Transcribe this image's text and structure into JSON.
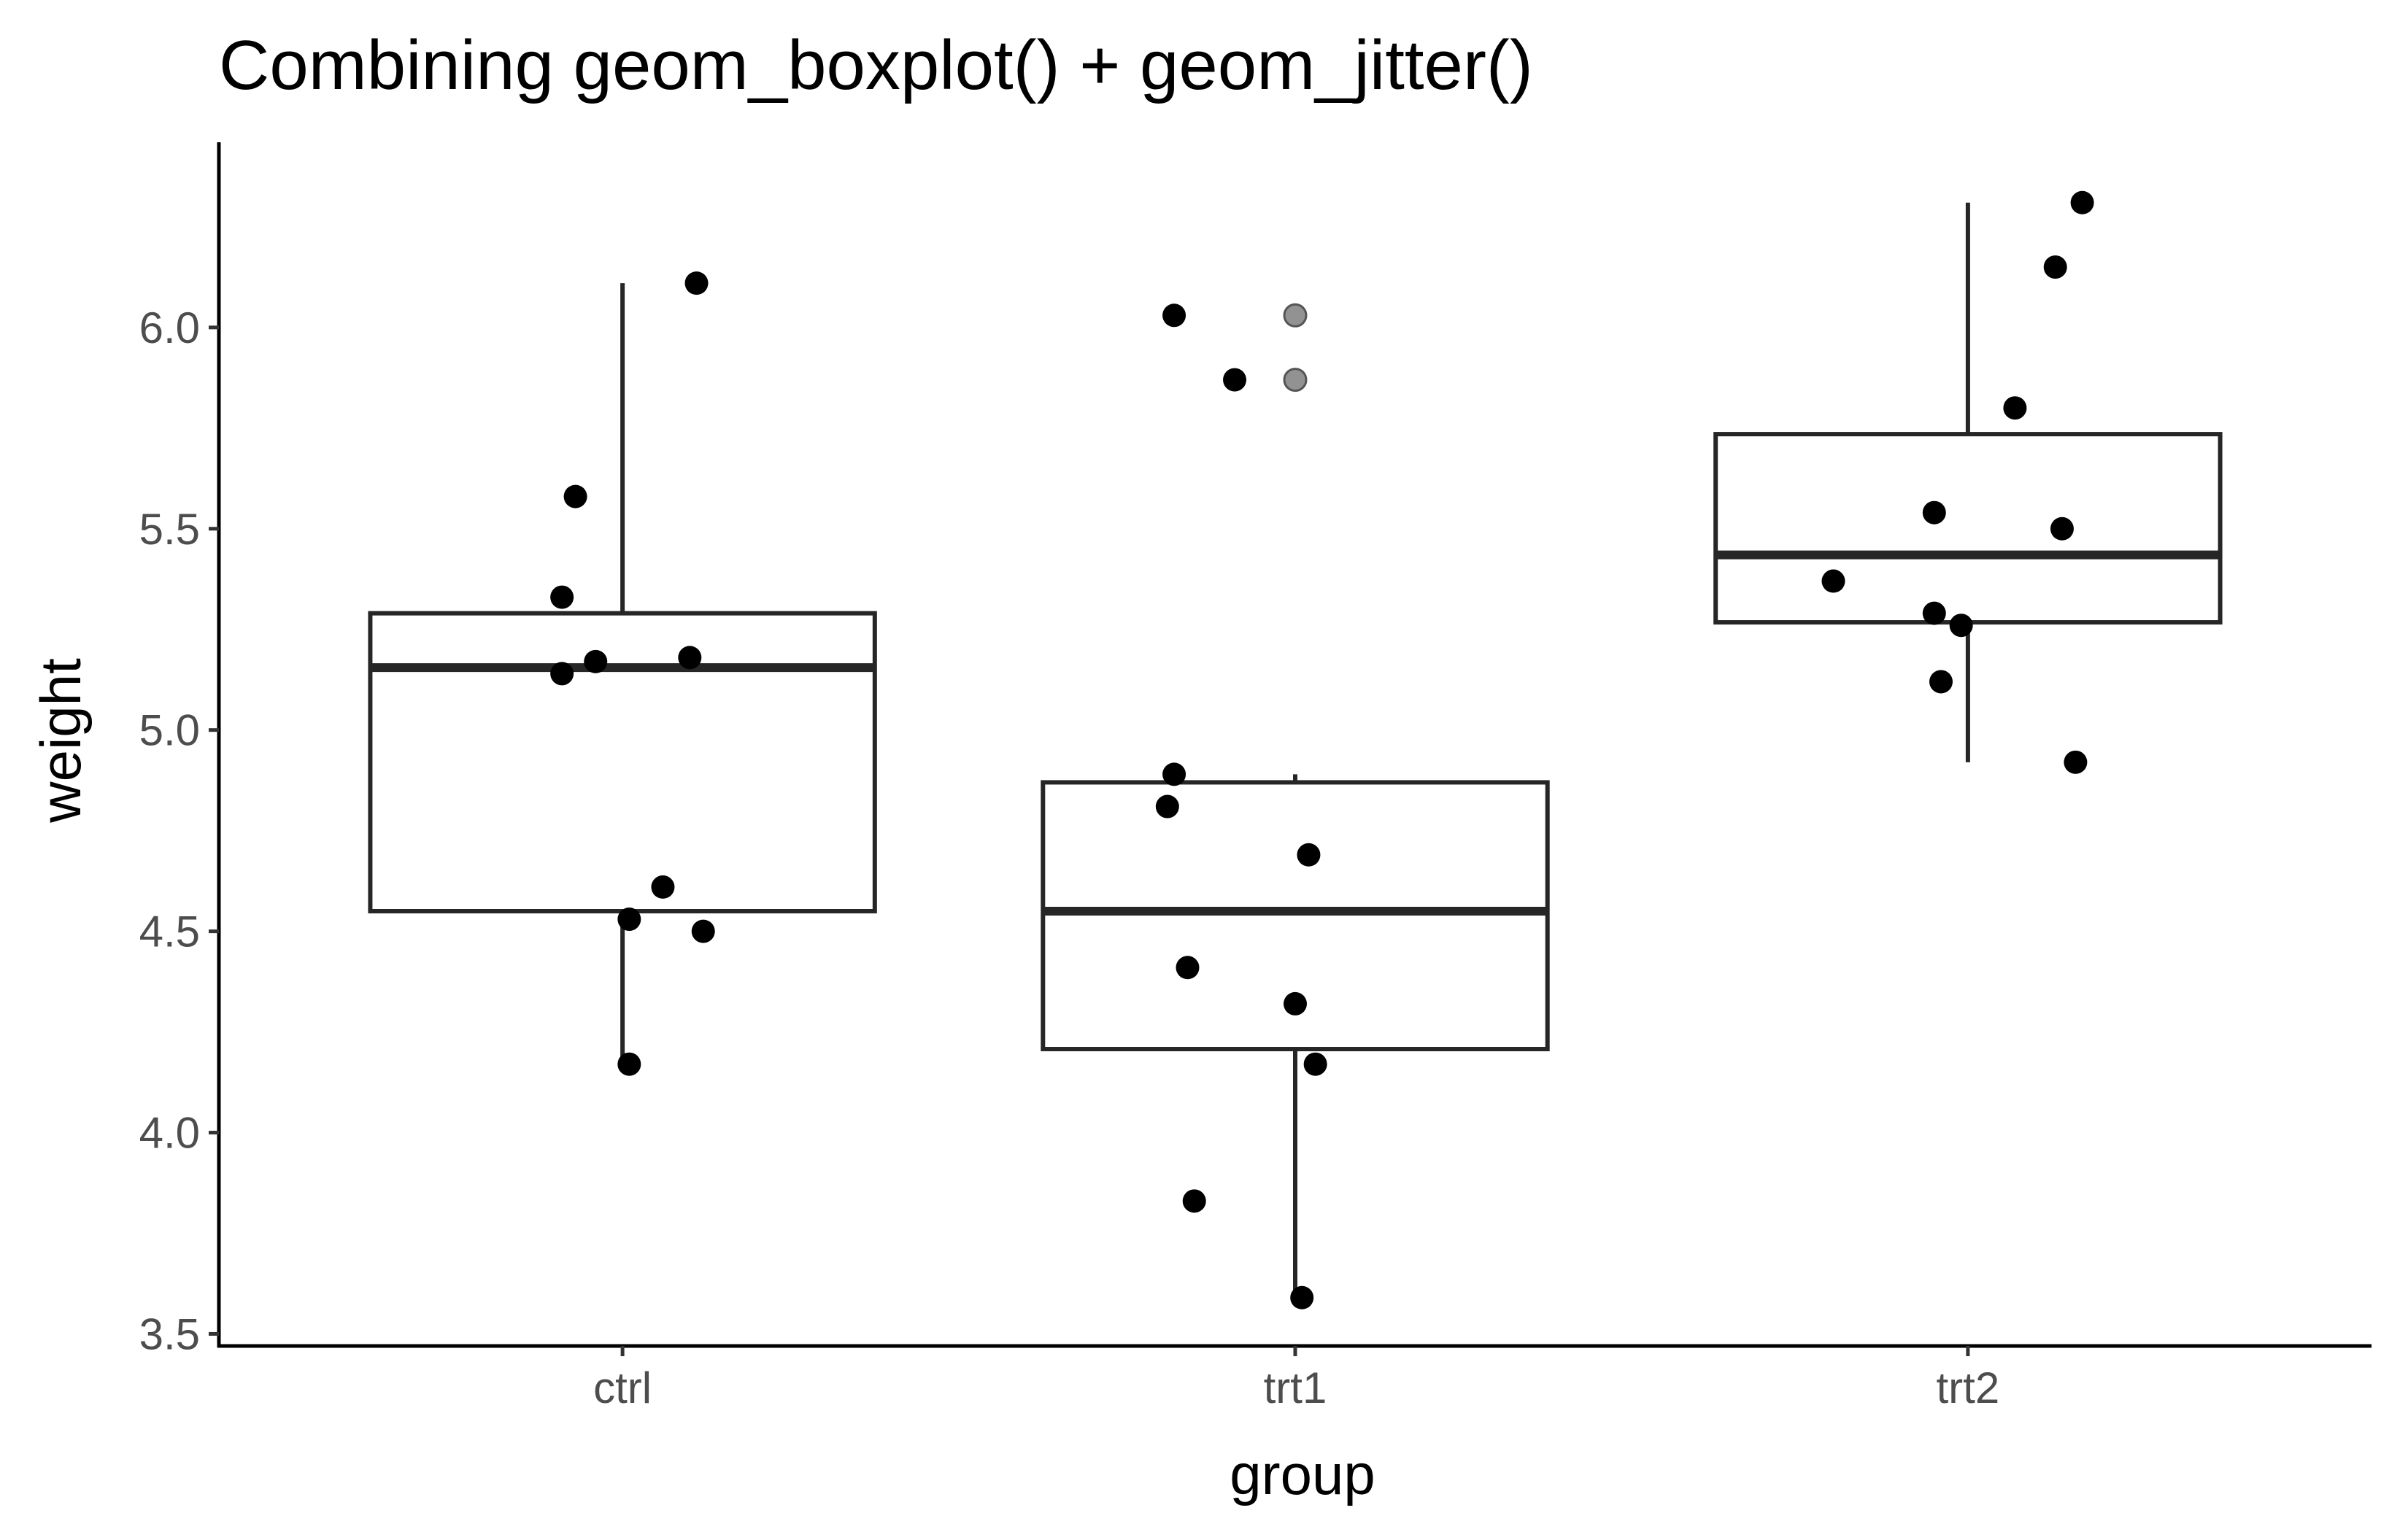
{
  "chart_data": {
    "type": "box",
    "title": "Combining geom_boxplot() + geom_jitter()",
    "xlabel": "group",
    "ylabel": "weight",
    "ylim": [
      3.47,
      6.46
    ],
    "yticks": [
      "3.5",
      "4.0",
      "4.5",
      "5.0",
      "5.5",
      "6.0"
    ],
    "categories": [
      "ctrl",
      "trt1",
      "trt2"
    ],
    "grid": false,
    "legend": "none",
    "colors": {
      "box_line": "#262626",
      "point": "#000000",
      "outlier": "#7f7f7f",
      "axis": "#000000"
    },
    "boxes": [
      {
        "group": "ctrl",
        "whisker_low": 4.17,
        "q1": 4.55,
        "median": 5.155,
        "q3": 5.29,
        "whisker_high": 6.11,
        "outliers": []
      },
      {
        "group": "trt1",
        "whisker_low": 3.59,
        "q1": 4.2075,
        "median": 4.55,
        "q3": 4.87,
        "whisker_high": 4.89,
        "outliers": [
          6.03,
          5.87
        ]
      },
      {
        "group": "trt2",
        "whisker_low": 4.92,
        "q1": 5.2675,
        "median": 5.435,
        "q3": 5.735,
        "whisker_high": 6.31,
        "outliers": []
      }
    ],
    "points": [
      {
        "group": "ctrl",
        "y": 4.17,
        "jitter": 0.01
      },
      {
        "group": "ctrl",
        "y": 5.58,
        "jitter": -0.07
      },
      {
        "group": "ctrl",
        "y": 5.18,
        "jitter": 0.1
      },
      {
        "group": "ctrl",
        "y": 6.11,
        "jitter": 0.11
      },
      {
        "group": "ctrl",
        "y": 4.5,
        "jitter": 0.12
      },
      {
        "group": "ctrl",
        "y": 4.61,
        "jitter": 0.06
      },
      {
        "group": "ctrl",
        "y": 5.17,
        "jitter": -0.04
      },
      {
        "group": "ctrl",
        "y": 4.53,
        "jitter": 0.01
      },
      {
        "group": "ctrl",
        "y": 5.33,
        "jitter": -0.09
      },
      {
        "group": "ctrl",
        "y": 5.14,
        "jitter": -0.09
      },
      {
        "group": "trt1",
        "y": 4.81,
        "jitter": -0.19
      },
      {
        "group": "trt1",
        "y": 4.17,
        "jitter": 0.03
      },
      {
        "group": "trt1",
        "y": 4.41,
        "jitter": -0.16
      },
      {
        "group": "trt1",
        "y": 3.59,
        "jitter": 0.01
      },
      {
        "group": "trt1",
        "y": 5.87,
        "jitter": -0.09
      },
      {
        "group": "trt1",
        "y": 3.83,
        "jitter": -0.15
      },
      {
        "group": "trt1",
        "y": 6.03,
        "jitter": -0.18
      },
      {
        "group": "trt1",
        "y": 4.89,
        "jitter": -0.18
      },
      {
        "group": "trt1",
        "y": 4.32,
        "jitter": 0.0
      },
      {
        "group": "trt1",
        "y": 4.69,
        "jitter": 0.02
      },
      {
        "group": "trt2",
        "y": 6.31,
        "jitter": 0.17
      },
      {
        "group": "trt2",
        "y": 5.12,
        "jitter": -0.04
      },
      {
        "group": "trt2",
        "y": 5.54,
        "jitter": -0.05
      },
      {
        "group": "trt2",
        "y": 5.5,
        "jitter": 0.14
      },
      {
        "group": "trt2",
        "y": 5.37,
        "jitter": -0.2
      },
      {
        "group": "trt2",
        "y": 5.29,
        "jitter": -0.05
      },
      {
        "group": "trt2",
        "y": 4.92,
        "jitter": 0.16
      },
      {
        "group": "trt2",
        "y": 6.15,
        "jitter": 0.13
      },
      {
        "group": "trt2",
        "y": 5.8,
        "jitter": 0.07
      },
      {
        "group": "trt2",
        "y": 5.26,
        "jitter": -0.01
      }
    ]
  }
}
